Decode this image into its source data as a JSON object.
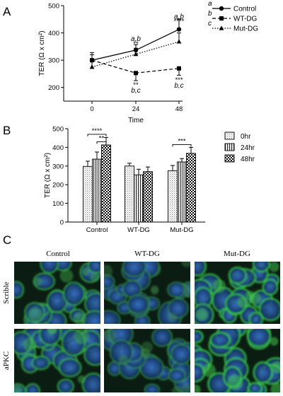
{
  "panels": {
    "A": "A",
    "B": "B",
    "C": "C"
  },
  "chart_data": [
    {
      "panel": "A",
      "type": "line",
      "xlabel": "Time",
      "ylabel": "TER (Ω x cm²)",
      "x": [
        0,
        24,
        48
      ],
      "ylim": [
        150,
        500
      ],
      "yticks": [
        200,
        300,
        400,
        500
      ],
      "grid": false,
      "legend_position": "top-right",
      "series": [
        {
          "name": "Control",
          "key": "a",
          "marker": "circle",
          "line": "solid",
          "values": [
            300,
            337,
            413
          ],
          "errors": [
            28,
            20,
            38
          ]
        },
        {
          "name": "WT-DG",
          "key": "b",
          "marker": "square",
          "line": "dashed",
          "values": [
            300,
            253,
            270
          ],
          "errors": [
            20,
            28,
            25
          ]
        },
        {
          "name": "Mut-DG",
          "key": "c",
          "marker": "triangle",
          "line": "dotted",
          "values": [
            275,
            322,
            368
          ],
          "errors": [
            28,
            22,
            32
          ]
        }
      ],
      "annotations": [
        {
          "x": 24,
          "y": 381,
          "text": "a,b",
          "italic": true
        },
        {
          "x": 24,
          "y": 362,
          "text": "**",
          "italic": false
        },
        {
          "x": 48,
          "y": 463,
          "text": "a,b",
          "italic": true
        },
        {
          "x": 48,
          "y": 445,
          "text": "****",
          "italic": false
        },
        {
          "x": 24,
          "y": 212,
          "text": "**",
          "italic": false
        },
        {
          "x": 24,
          "y": 192,
          "text": "b,c",
          "italic": true
        },
        {
          "x": 48,
          "y": 230,
          "text": "***",
          "italic": false
        },
        {
          "x": 48,
          "y": 210,
          "text": "b,c",
          "italic": true
        }
      ]
    },
    {
      "panel": "B",
      "type": "bar",
      "xlabel": "",
      "ylabel": "TER (Ω x cm²)",
      "categories": [
        "Control",
        "WT-DG",
        "Mut-DG"
      ],
      "ylim": [
        0,
        500
      ],
      "yticks": [
        0,
        100,
        200,
        300,
        400,
        500
      ],
      "grid": false,
      "legend_position": "right",
      "series": [
        {
          "name": "0hr",
          "pattern": "dots",
          "values": [
            298,
            300,
            275
          ],
          "errors": [
            28,
            15,
            28
          ]
        },
        {
          "name": "24hr",
          "pattern": "vlines",
          "values": [
            337,
            253,
            322
          ],
          "errors": [
            38,
            30,
            18
          ]
        },
        {
          "name": "48hr",
          "pattern": "checker",
          "values": [
            413,
            270,
            368
          ],
          "errors": [
            40,
            25,
            32
          ]
        }
      ],
      "significance": [
        {
          "category": "Control",
          "from_series": 0,
          "to_series": 2,
          "y": 470,
          "text": "****"
        },
        {
          "category": "Control",
          "from_series": 1,
          "to_series": 2,
          "y": 430,
          "text": "**"
        },
        {
          "category": "Mut-DG",
          "from_series": 0,
          "to_series": 2,
          "y": 415,
          "text": "***"
        }
      ]
    }
  ],
  "micrographs": {
    "columns": [
      "Control",
      "WT-DG",
      "Mut-DG"
    ],
    "rows": [
      "Scrible",
      "aPKC"
    ]
  }
}
